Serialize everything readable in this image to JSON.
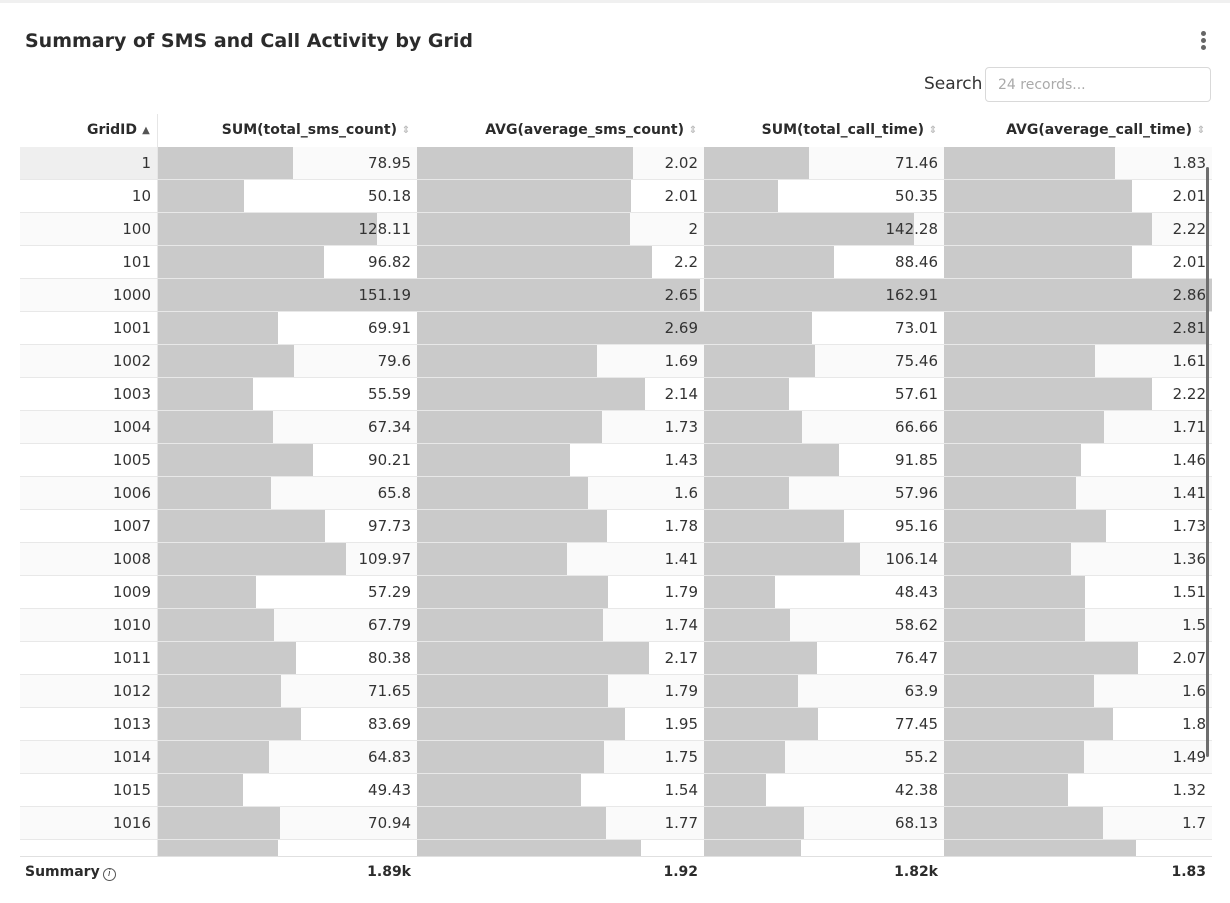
{
  "title": "Summary of SMS and Call Activity by Grid",
  "search": {
    "label": "Search",
    "placeholder": "24 records..."
  },
  "icons": {
    "menu": "kebab-menu-icon",
    "info": "info-icon",
    "sort_asc": "sort-ascending-icon",
    "sort_none": "sort-unsorted-icon"
  },
  "colors": {
    "bar": "#cacaca",
    "header_border": "#e6e6e6"
  },
  "columns": [
    {
      "key": "grid_id",
      "label": "GridID",
      "sort": "asc"
    },
    {
      "key": "sms_sum",
      "label": "SUM(total_sms_count)",
      "sort": "none"
    },
    {
      "key": "sms_avg",
      "label": "AVG(average_sms_count)",
      "sort": "none"
    },
    {
      "key": "call_sum",
      "label": "SUM(total_call_time)",
      "sort": "none"
    },
    {
      "key": "call_avg",
      "label": "AVG(average_call_time)",
      "sort": "none"
    }
  ],
  "rows": [
    {
      "grid_id": "1",
      "sms_sum": "78.95",
      "sms_avg": "2.02",
      "call_sum": "71.46",
      "call_avg": "1.83"
    },
    {
      "grid_id": "10",
      "sms_sum": "50.18",
      "sms_avg": "2.01",
      "call_sum": "50.35",
      "call_avg": "2.01"
    },
    {
      "grid_id": "100",
      "sms_sum": "128.11",
      "sms_avg": "2",
      "call_sum": "142.28",
      "call_avg": "2.22"
    },
    {
      "grid_id": "101",
      "sms_sum": "96.82",
      "sms_avg": "2.2",
      "call_sum": "88.46",
      "call_avg": "2.01"
    },
    {
      "grid_id": "1000",
      "sms_sum": "151.19",
      "sms_avg": "2.65",
      "call_sum": "162.91",
      "call_avg": "2.86"
    },
    {
      "grid_id": "1001",
      "sms_sum": "69.91",
      "sms_avg": "2.69",
      "call_sum": "73.01",
      "call_avg": "2.81"
    },
    {
      "grid_id": "1002",
      "sms_sum": "79.6",
      "sms_avg": "1.69",
      "call_sum": "75.46",
      "call_avg": "1.61"
    },
    {
      "grid_id": "1003",
      "sms_sum": "55.59",
      "sms_avg": "2.14",
      "call_sum": "57.61",
      "call_avg": "2.22"
    },
    {
      "grid_id": "1004",
      "sms_sum": "67.34",
      "sms_avg": "1.73",
      "call_sum": "66.66",
      "call_avg": "1.71"
    },
    {
      "grid_id": "1005",
      "sms_sum": "90.21",
      "sms_avg": "1.43",
      "call_sum": "91.85",
      "call_avg": "1.46"
    },
    {
      "grid_id": "1006",
      "sms_sum": "65.8",
      "sms_avg": "1.6",
      "call_sum": "57.96",
      "call_avg": "1.41"
    },
    {
      "grid_id": "1007",
      "sms_sum": "97.73",
      "sms_avg": "1.78",
      "call_sum": "95.16",
      "call_avg": "1.73"
    },
    {
      "grid_id": "1008",
      "sms_sum": "109.97",
      "sms_avg": "1.41",
      "call_sum": "106.14",
      "call_avg": "1.36"
    },
    {
      "grid_id": "1009",
      "sms_sum": "57.29",
      "sms_avg": "1.79",
      "call_sum": "48.43",
      "call_avg": "1.51"
    },
    {
      "grid_id": "1010",
      "sms_sum": "67.79",
      "sms_avg": "1.74",
      "call_sum": "58.62",
      "call_avg": "1.5"
    },
    {
      "grid_id": "1011",
      "sms_sum": "80.38",
      "sms_avg": "2.17",
      "call_sum": "76.47",
      "call_avg": "2.07"
    },
    {
      "grid_id": "1012",
      "sms_sum": "71.65",
      "sms_avg": "1.79",
      "call_sum": "63.9",
      "call_avg": "1.6"
    },
    {
      "grid_id": "1013",
      "sms_sum": "83.69",
      "sms_avg": "1.95",
      "call_sum": "77.45",
      "call_avg": "1.8"
    },
    {
      "grid_id": "1014",
      "sms_sum": "64.83",
      "sms_avg": "1.75",
      "call_sum": "55.2",
      "call_avg": "1.49"
    },
    {
      "grid_id": "1015",
      "sms_sum": "49.43",
      "sms_avg": "1.54",
      "call_sum": "42.38",
      "call_avg": "1.32"
    },
    {
      "grid_id": "1016",
      "sms_sum": "70.94",
      "sms_avg": "1.77",
      "call_sum": "68.13",
      "call_avg": "1.7"
    },
    {
      "grid_id": "",
      "sms_sum": "",
      "sms_avg": "",
      "call_sum": "",
      "call_avg": ""
    }
  ],
  "partial_row_bars": {
    "sms_sum": 70.0,
    "sms_avg": 2.1,
    "call_sum": 66.0,
    "call_avg": 2.05
  },
  "summary": {
    "label": "Summary",
    "sms_sum": "1.89k",
    "sms_avg": "1.92",
    "call_sum": "1.82k",
    "call_avg": "1.83"
  }
}
